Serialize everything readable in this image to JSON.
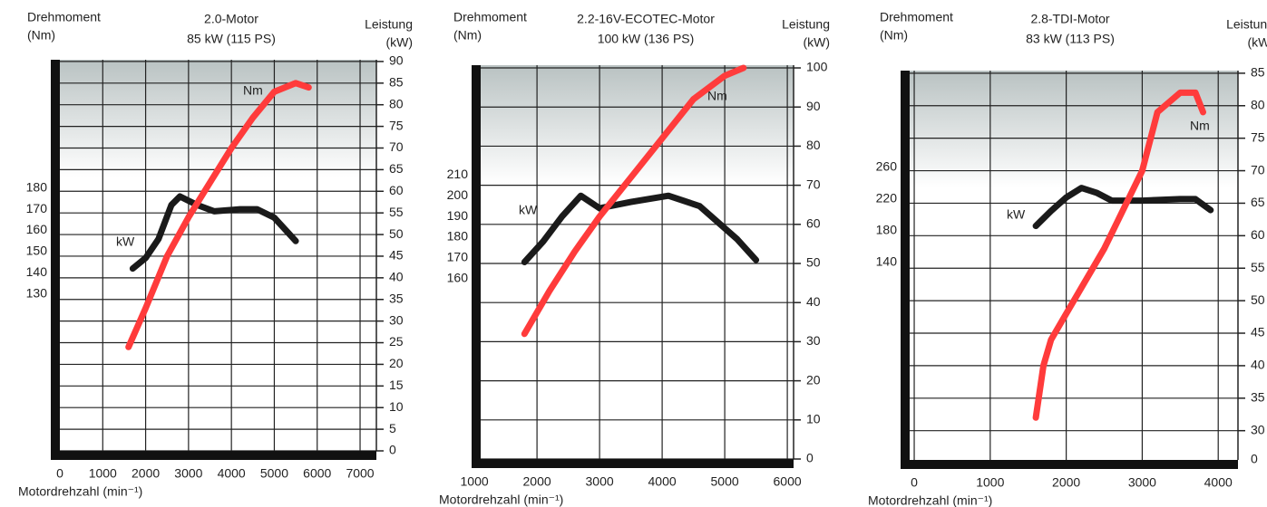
{
  "chart_data": [
    {
      "type": "line",
      "title": "2.0-Motor",
      "subtitle": "85 kW (115 PS)",
      "y_label": "Drehmoment",
      "y_unit": "(Nm)",
      "y2_label": "Leistung",
      "y2_unit": "(kW)",
      "x_label": "Motordrehzahl (min⁻¹)",
      "xlim": [
        0,
        7380
      ],
      "xticks": [
        0,
        1000,
        2000,
        3000,
        4000,
        5000,
        6000,
        7000
      ],
      "ylim": [
        56,
        240.5
      ],
      "yticks": [
        130,
        140,
        150,
        160,
        170,
        180
      ],
      "y2lim": [
        0,
        90.4
      ],
      "y2ticks": [
        0,
        5,
        10,
        15,
        20,
        25,
        30,
        35,
        40,
        45,
        50,
        55,
        60,
        65,
        70,
        75,
        80,
        85,
        90
      ],
      "grid": true,
      "series": [
        {
          "name": "Nm",
          "color": "#1a1a1a",
          "x": [
            1700,
            2000,
            2300,
            2600,
            2800,
            3200,
            3600,
            4200,
            4600,
            5000,
            5500
          ],
          "values": [
            142,
            147,
            156,
            172,
            176,
            172,
            169,
            170,
            170,
            166,
            155
          ]
        },
        {
          "name": "kW",
          "color": "#ff3b3b",
          "axis": "y2",
          "x": [
            1600,
            2000,
            2500,
            3000,
            3500,
            4000,
            4500,
            5000,
            5500,
            5800
          ],
          "values": [
            24,
            33,
            45,
            54,
            62,
            70,
            77,
            83,
            85,
            84
          ]
        }
      ]
    },
    {
      "type": "line",
      "title": "2.2-16V-ECOTEC-Motor",
      "subtitle": "100 kW (136 PS)",
      "y_label": "Drehmoment",
      "y_unit": "(Nm)",
      "y2_label": "Leistung",
      "y2_unit": "(kW)",
      "x_label": "Motordrehzahl (min⁻¹)",
      "xlim": [
        1100,
        6100
      ],
      "xticks": [
        1000,
        2000,
        3000,
        4000,
        5000,
        6000
      ],
      "ylim": [
        73,
        263
      ],
      "yticks": [
        160,
        170,
        180,
        190,
        200,
        210
      ],
      "y2lim": [
        0,
        100.7
      ],
      "y2ticks": [
        0,
        10,
        20,
        30,
        40,
        50,
        60,
        70,
        80,
        90,
        100
      ],
      "grid": true,
      "series": [
        {
          "name": "Nm",
          "color": "#1a1a1a",
          "x": [
            1800,
            2100,
            2400,
            2700,
            3000,
            3500,
            4100,
            4600,
            5200,
            5500
          ],
          "values": [
            168,
            178,
            190,
            200,
            194,
            197,
            200,
            195,
            179,
            169
          ]
        },
        {
          "name": "kW",
          "color": "#ff3b3b",
          "axis": "y2",
          "x": [
            1800,
            2200,
            2600,
            3000,
            3500,
            4000,
            4500,
            5000,
            5300
          ],
          "values": [
            32,
            43,
            53,
            62,
            72,
            82,
            92,
            98,
            100
          ]
        }
      ]
    },
    {
      "type": "line",
      "title": "2.8-TDI-Motor",
      "subtitle": "83 kW (113 PS)",
      "y_label": "Drehmoment",
      "y_unit": "(Nm)",
      "y2_label": "Leistung",
      "y2_unit": "(kW)",
      "x_label": "Motordrehzahl (min⁻¹)",
      "xlim": [
        -60,
        4260
      ],
      "xticks": [
        0,
        1000,
        2000,
        3000,
        4000
      ],
      "ylim": [
        -109,
        382
      ],
      "yticks": [
        140,
        180,
        220,
        260
      ],
      "y2lim": [
        25.5,
        85.4
      ],
      "y2ticks": [
        30,
        35,
        40,
        45,
        50,
        55,
        60,
        65,
        70,
        75,
        80,
        85
      ],
      "y2_break_label": "0",
      "grid": true,
      "series": [
        {
          "name": "Nm",
          "color": "#1a1a1a",
          "x": [
            1600,
            1800,
            2000,
            2200,
            2400,
            2600,
            3000,
            3500,
            3700,
            3900
          ],
          "values": [
            186,
            205,
            222,
            234,
            228,
            218,
            218,
            220,
            220,
            206
          ]
        },
        {
          "name": "kW",
          "color": "#ff3b3b",
          "axis": "y2",
          "x": [
            1600,
            1700,
            1800,
            2000,
            2500,
            3000,
            3200,
            3500,
            3700,
            3800
          ],
          "values": [
            32,
            40,
            44,
            48,
            58,
            70,
            79,
            82,
            82,
            79
          ]
        }
      ]
    }
  ]
}
